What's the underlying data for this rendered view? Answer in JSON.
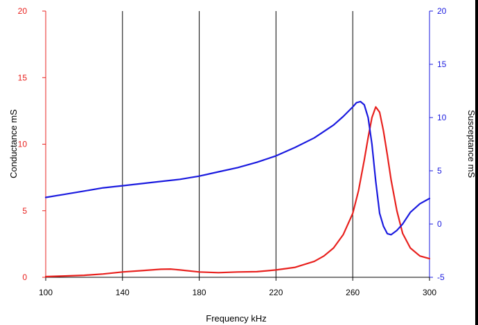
{
  "chart_data": {
    "type": "line",
    "xlabel": "Frequency kHz",
    "ylabel_left": "Conductance mS",
    "ylabel_right": "Susceptance mS",
    "xlim": [
      100,
      300
    ],
    "ylim_left": [
      0,
      20
    ],
    "ylim_right": [
      -5,
      20
    ],
    "x_ticks": [
      "100",
      "140",
      "180",
      "220",
      "260",
      "300"
    ],
    "y_left_ticks": [
      "0",
      "5",
      "10",
      "15",
      "20"
    ],
    "y_right_ticks": [
      "-5",
      "0",
      "5",
      "10",
      "15",
      "20"
    ],
    "vertical_grid_at": [
      140,
      180,
      220,
      260
    ],
    "colors": {
      "left_axis": "#e8201d",
      "right_axis": "#1a1adf"
    },
    "series": [
      {
        "axis": "left",
        "color": "#e8201d",
        "x": [
          100,
          110,
          120,
          130,
          140,
          150,
          160,
          165,
          170,
          180,
          190,
          200,
          210,
          220,
          230,
          240,
          245,
          250,
          255,
          260,
          263,
          266,
          268,
          270,
          272,
          274,
          276,
          278,
          280,
          283,
          286,
          290,
          295,
          300
        ],
        "values": [
          0.05,
          0.1,
          0.15,
          0.25,
          0.4,
          0.5,
          0.6,
          0.62,
          0.55,
          0.4,
          0.35,
          0.4,
          0.42,
          0.55,
          0.75,
          1.2,
          1.6,
          2.2,
          3.2,
          4.8,
          6.5,
          8.8,
          10.5,
          12.0,
          12.8,
          12.4,
          11.0,
          9.2,
          7.3,
          5.0,
          3.3,
          2.2,
          1.6,
          1.4
        ]
      },
      {
        "axis": "right",
        "color": "#1a1adf",
        "x": [
          100,
          110,
          120,
          130,
          140,
          150,
          160,
          170,
          180,
          190,
          200,
          210,
          220,
          230,
          240,
          250,
          255,
          260,
          262,
          264,
          266,
          268,
          270,
          272,
          274,
          276,
          278,
          280,
          283,
          286,
          290,
          295,
          300
        ],
        "values": [
          2.5,
          2.8,
          3.1,
          3.4,
          3.6,
          3.8,
          4.0,
          4.2,
          4.5,
          4.9,
          5.3,
          5.8,
          6.4,
          7.2,
          8.1,
          9.3,
          10.1,
          11.0,
          11.4,
          11.5,
          11.2,
          10.0,
          7.5,
          4.0,
          1.0,
          -0.2,
          -0.9,
          -1.0,
          -0.6,
          0.0,
          1.1,
          1.9,
          2.4
        ]
      }
    ]
  }
}
